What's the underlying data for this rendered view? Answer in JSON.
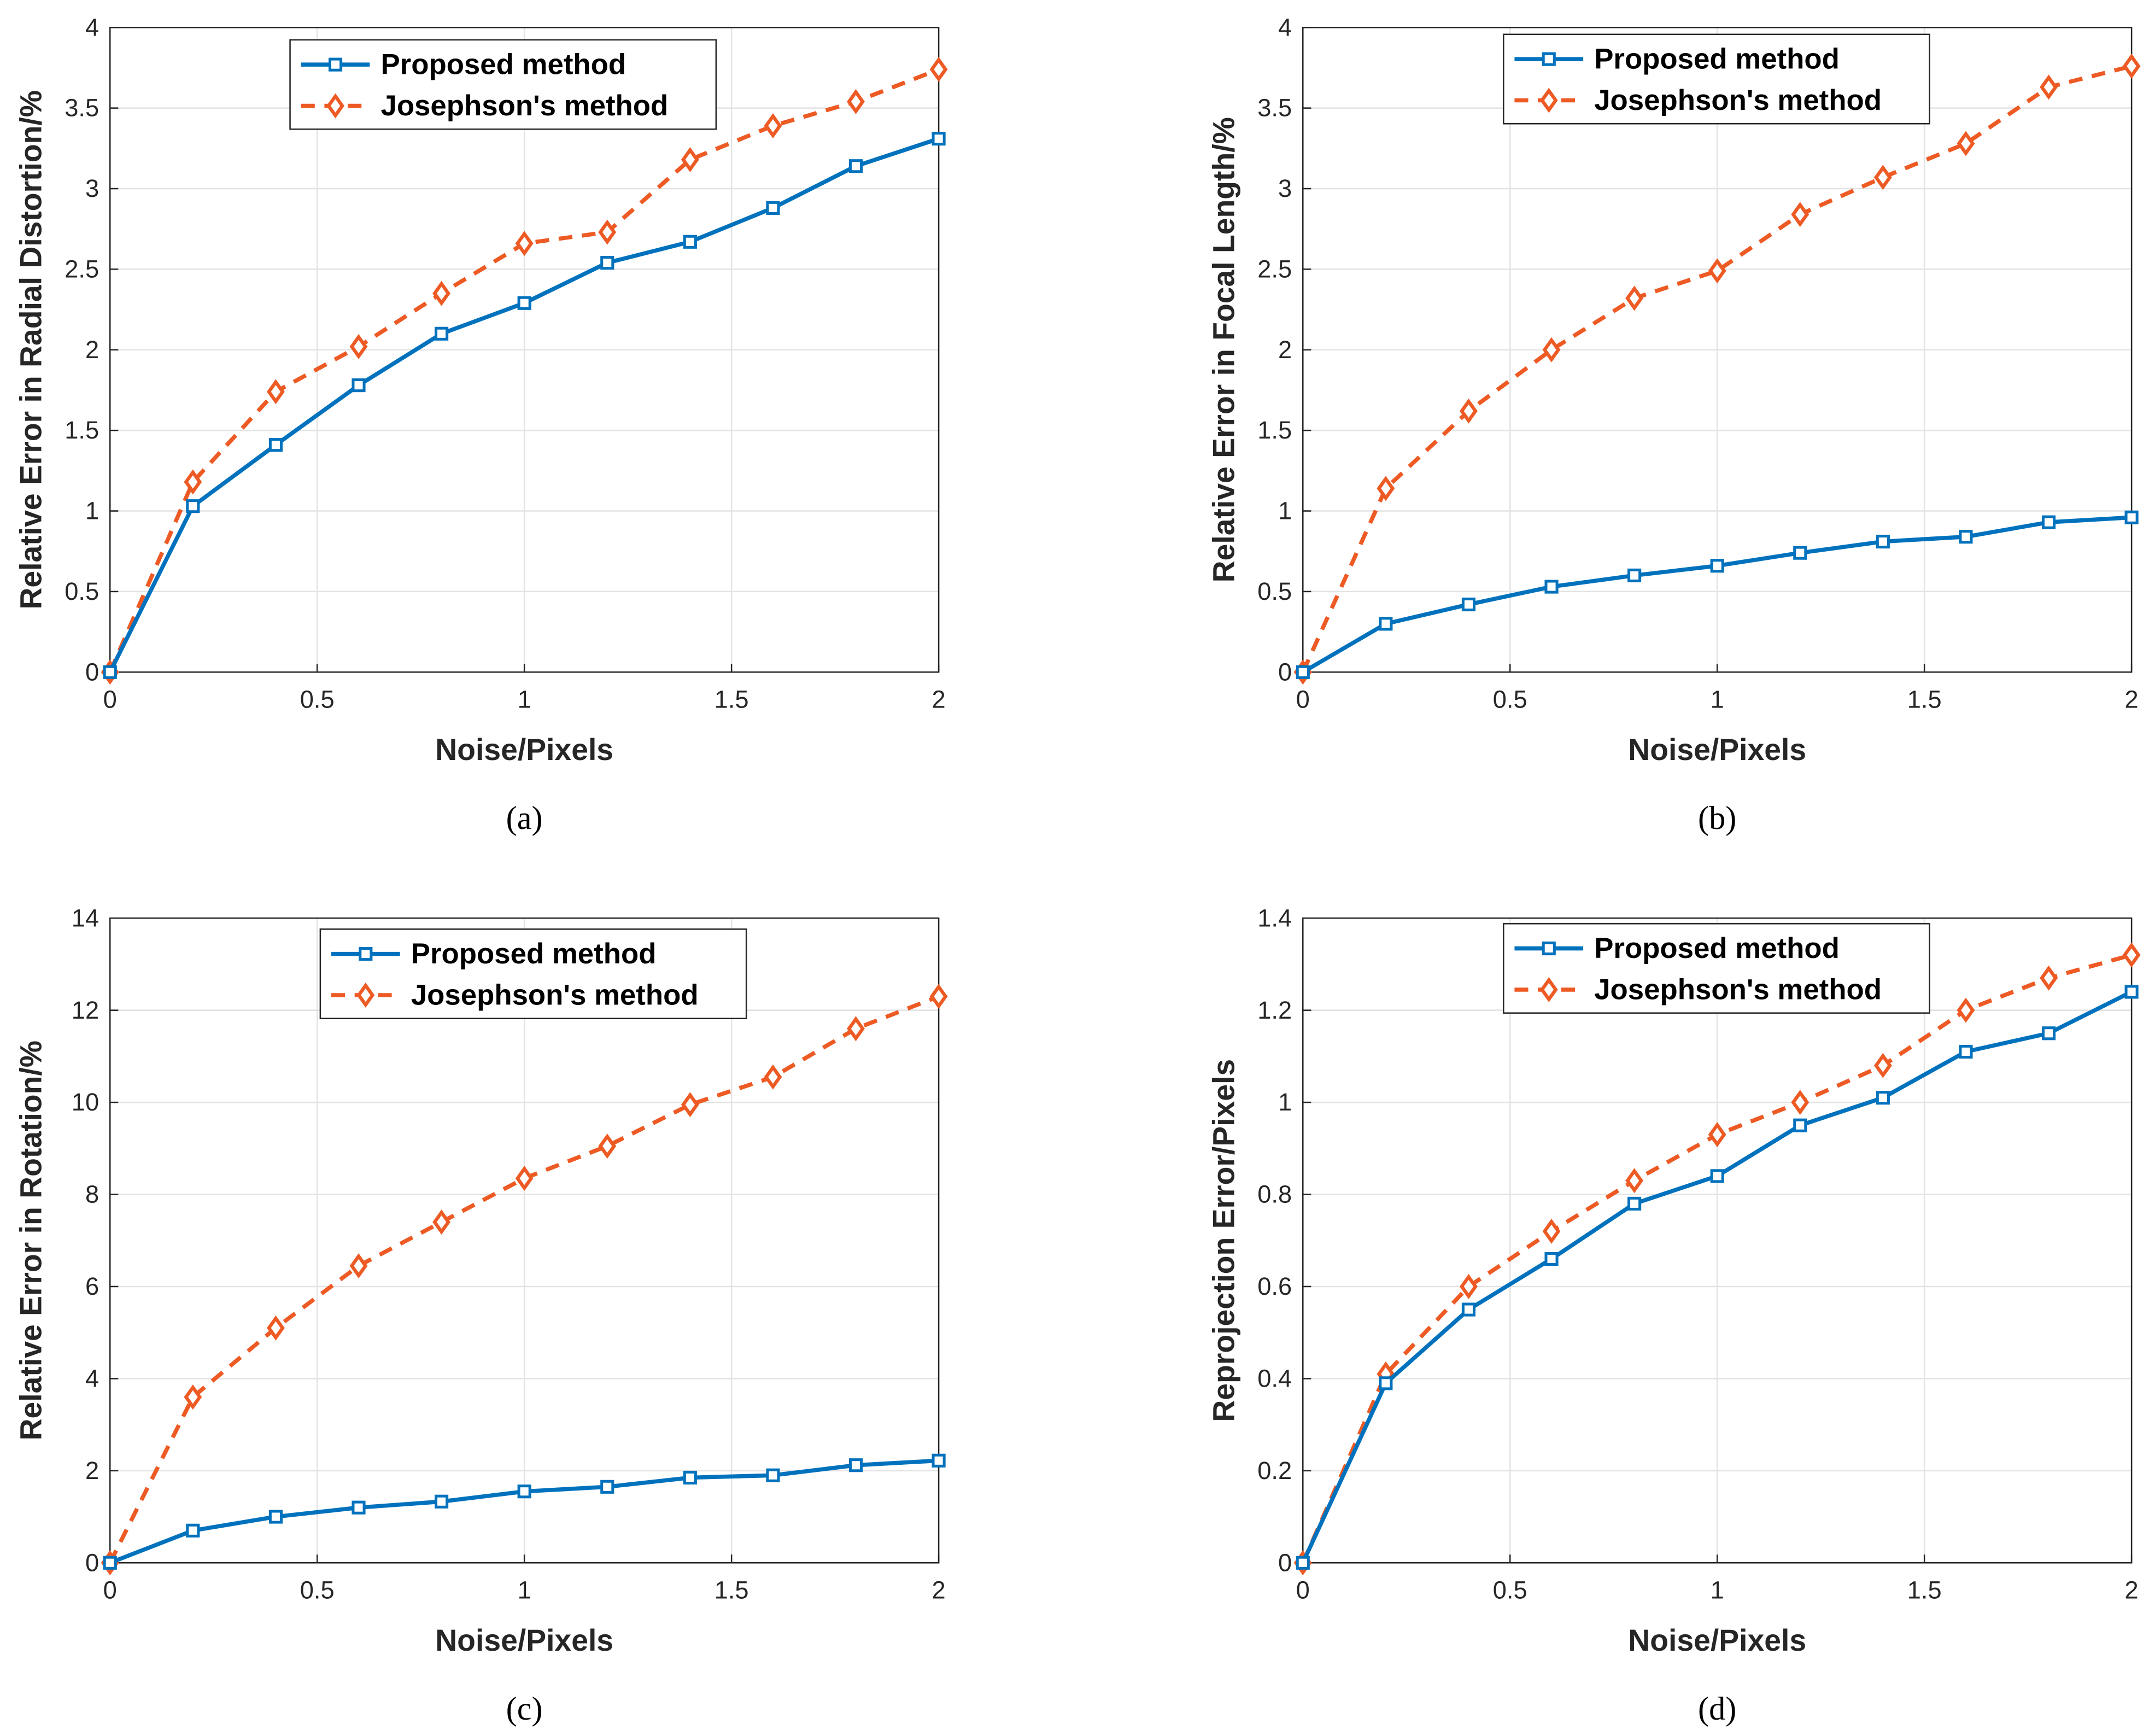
{
  "colors": {
    "proposed": "#0072BD",
    "josephson": "#EE5A24"
  },
  "chart_data": [
    {
      "type": "line",
      "caption": "(a)",
      "xlabel": "Noise/Pixels",
      "ylabel": "Relative Error in Radial Distortion/%",
      "xlim": [
        0,
        2
      ],
      "ylim": [
        0,
        4
      ],
      "xticks": [
        "0",
        "0.5",
        "1",
        "1.5",
        "2"
      ],
      "yticks": [
        "0",
        "0.5",
        "1",
        "1.5",
        "2",
        "2.5",
        "3",
        "3.5",
        "4"
      ],
      "grid": true,
      "legend_position": "top-center",
      "x": [
        0,
        0.2,
        0.4,
        0.6,
        0.8,
        1.0,
        1.2,
        1.4,
        1.6,
        1.8,
        2.0
      ],
      "series": [
        {
          "name": "Proposed method",
          "values": [
            0,
            1.03,
            1.41,
            1.78,
            2.1,
            2.29,
            2.54,
            2.67,
            2.88,
            3.14,
            3.31
          ]
        },
        {
          "name": "Josephson's method",
          "values": [
            0,
            1.18,
            1.74,
            2.02,
            2.35,
            2.66,
            2.73,
            3.18,
            3.39,
            3.54,
            3.74
          ]
        }
      ]
    },
    {
      "type": "line",
      "caption": "(b)",
      "xlabel": "Noise/Pixels",
      "ylabel": "Relative Error in Focal Length/%",
      "xlim": [
        0,
        2
      ],
      "ylim": [
        0,
        4
      ],
      "xticks": [
        "0",
        "0.5",
        "1",
        "1.5",
        "2"
      ],
      "yticks": [
        "0",
        "0.5",
        "1",
        "1.5",
        "2",
        "2.5",
        "3",
        "3.5",
        "4"
      ],
      "grid": true,
      "legend_position": "top-center",
      "x": [
        0,
        0.2,
        0.4,
        0.6,
        0.8,
        1.0,
        1.2,
        1.4,
        1.6,
        1.8,
        2.0
      ],
      "series": [
        {
          "name": "Proposed method",
          "values": [
            0,
            0.3,
            0.42,
            0.53,
            0.6,
            0.66,
            0.74,
            0.81,
            0.84,
            0.93,
            0.96
          ]
        },
        {
          "name": "Josephson's method",
          "values": [
            0,
            1.14,
            1.62,
            2.0,
            2.32,
            2.49,
            2.84,
            3.07,
            3.28,
            3.63,
            3.76
          ]
        }
      ]
    },
    {
      "type": "line",
      "caption": "(c)",
      "xlabel": "Noise/Pixels",
      "ylabel": "Relative Error in Rotation/%",
      "xlim": [
        0,
        2
      ],
      "ylim": [
        0,
        14
      ],
      "xticks": [
        "0",
        "0.5",
        "1",
        "1.5",
        "2"
      ],
      "yticks": [
        "0",
        "2",
        "4",
        "6",
        "8",
        "10",
        "12",
        "14"
      ],
      "grid": true,
      "legend_position": "top-center",
      "x": [
        0,
        0.2,
        0.4,
        0.6,
        0.8,
        1.0,
        1.2,
        1.4,
        1.6,
        1.8,
        2.0
      ],
      "series": [
        {
          "name": "Proposed method",
          "values": [
            0,
            0.7,
            1.0,
            1.2,
            1.33,
            1.55,
            1.65,
            1.85,
            1.9,
            2.12,
            2.22
          ]
        },
        {
          "name": "Josephson's method",
          "values": [
            0,
            3.6,
            5.1,
            6.45,
            7.4,
            8.35,
            9.05,
            9.95,
            10.55,
            11.6,
            12.3
          ]
        }
      ]
    },
    {
      "type": "line",
      "caption": "(d)",
      "xlabel": "Noise/Pixels",
      "ylabel": "Reprojection Error/Pixels",
      "xlim": [
        0,
        2
      ],
      "ylim": [
        0,
        1.4
      ],
      "xticks": [
        "0",
        "0.5",
        "1",
        "1.5",
        "2"
      ],
      "yticks": [
        "0",
        "0.2",
        "0.4",
        "0.6",
        "0.8",
        "1",
        "1.2",
        "1.4"
      ],
      "grid": true,
      "legend_position": "top-center",
      "x": [
        0,
        0.2,
        0.4,
        0.6,
        0.8,
        1.0,
        1.2,
        1.4,
        1.6,
        1.8,
        2.0
      ],
      "series": [
        {
          "name": "Proposed method",
          "values": [
            0,
            0.39,
            0.55,
            0.66,
            0.78,
            0.84,
            0.95,
            1.01,
            1.11,
            1.15,
            1.24
          ]
        },
        {
          "name": "Josephson's method",
          "values": [
            0,
            0.41,
            0.6,
            0.72,
            0.83,
            0.93,
            1.0,
            1.08,
            1.2,
            1.27,
            1.32
          ]
        }
      ]
    }
  ]
}
